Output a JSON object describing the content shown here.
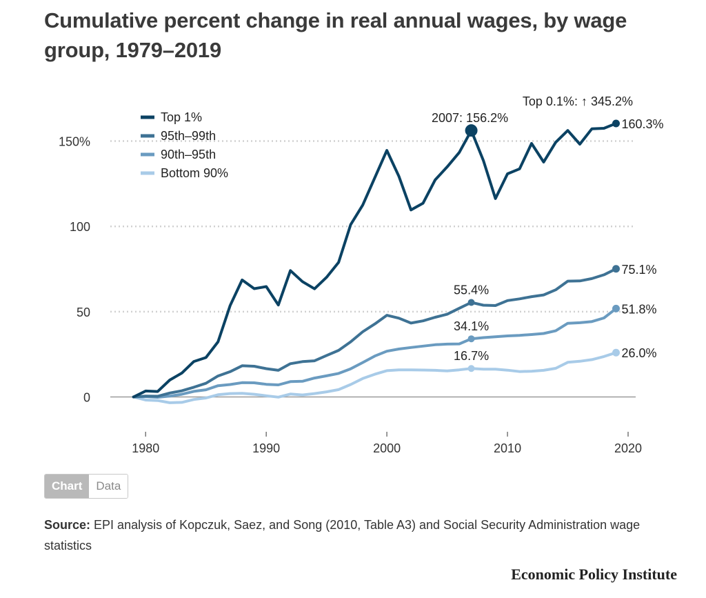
{
  "title": "Cumulative percent change in real annual wages, by wage group, 1979–2019",
  "toggle": {
    "chart_label": "Chart",
    "data_label": "Data"
  },
  "source": {
    "label": "Source:",
    "text": "EPI analysis of Kopczuk, Saez, and Song (2010, Table A3) and Social Security Administration wage statistics"
  },
  "brand": "Economic Policy Institute",
  "colors": {
    "top1": "#0b4263",
    "p95_99": "#3e7294",
    "p90_95": "#6a9bc0",
    "bottom90": "#a8cbe8"
  },
  "chart_data": {
    "type": "line",
    "xlim": [
      1976.5,
      2020.8
    ],
    "ylim": [
      -20,
      168
    ],
    "x_ticks": [
      1980,
      1990,
      2000,
      2010,
      2020
    ],
    "x_tick_labels": [
      "1980",
      "1990",
      "2000",
      "2010",
      "2020"
    ],
    "y_ticks": [
      0,
      50,
      100,
      150
    ],
    "y_tick_labels": [
      "0",
      "50",
      "100",
      "150%"
    ],
    "grid": "horizontal dotted",
    "legend": "top-left",
    "top_note": "Top 0.1%: ↑ 345.2%",
    "x": [
      1979,
      1980,
      1981,
      1982,
      1983,
      1984,
      1985,
      1986,
      1987,
      1988,
      1989,
      1990,
      1991,
      1992,
      1993,
      1994,
      1995,
      1996,
      1997,
      1998,
      1999,
      2000,
      2001,
      2002,
      2003,
      2004,
      2005,
      2006,
      2007,
      2008,
      2009,
      2010,
      2011,
      2012,
      2013,
      2014,
      2015,
      2016,
      2017,
      2018,
      2019
    ],
    "series": [
      {
        "name": "Top 1%",
        "key": "top1",
        "values": [
          0,
          3.5,
          3.2,
          9.9,
          14,
          20.8,
          23.1,
          32.3,
          53.5,
          68.6,
          63.5,
          64.7,
          53.9,
          74.1,
          67.6,
          63.4,
          70.1,
          78.9,
          101,
          112.5,
          128.5,
          144.5,
          129.3,
          109.6,
          113.6,
          127.2,
          134.9,
          143.3,
          156.2,
          138.6,
          116.3,
          130.8,
          133.7,
          148.6,
          137.7,
          149.3,
          156.2,
          148.2,
          157.2,
          157.5,
          160.3
        ],
        "end_label": "160.3%",
        "peak": {
          "x": 2007,
          "y": 156.2,
          "label": "2007: 156.2%"
        }
      },
      {
        "name": "95th–99th",
        "key": "p95_99",
        "values": [
          0,
          0.5,
          0.4,
          2.3,
          3.6,
          5.7,
          8,
          12.3,
          14.8,
          18.3,
          18,
          16.6,
          15.6,
          19.5,
          20.7,
          21.2,
          24.3,
          27.3,
          32.3,
          38.2,
          42.8,
          47.9,
          46.2,
          43.3,
          44.6,
          46.7,
          48.5,
          52,
          55.4,
          53.8,
          53.6,
          56.5,
          57.5,
          58.8,
          59.8,
          62.8,
          67.9,
          68,
          69.4,
          71.6,
          75.1
        ],
        "end_label": "75.1%",
        "mid": {
          "x": 2007,
          "y": 55.4,
          "label": "55.4%"
        }
      },
      {
        "name": "90th–95th",
        "key": "p90_95",
        "values": [
          0,
          0.2,
          -0.2,
          0.5,
          1.6,
          3.3,
          4.2,
          6.6,
          7.3,
          8.4,
          8.3,
          7.4,
          7.1,
          9,
          9.2,
          11.1,
          12.4,
          13.8,
          16.5,
          20.2,
          24,
          26.8,
          28.1,
          29,
          29.8,
          30.6,
          31,
          31.1,
          34.1,
          34.8,
          35.3,
          35.8,
          36.1,
          36.6,
          37.2,
          38.8,
          43.2,
          43.5,
          44.2,
          46.3,
          51.8
        ],
        "end_label": "51.8%",
        "mid": {
          "x": 2007,
          "y": 34.1,
          "label": "34.1%"
        }
      },
      {
        "name": "Bottom 90%",
        "key": "bottom90",
        "values": [
          0,
          -1.8,
          -2.1,
          -3.4,
          -3.2,
          -1.5,
          -0.6,
          1.3,
          2,
          2.1,
          1.6,
          0.7,
          -0.1,
          1.7,
          1.2,
          2,
          3,
          4.3,
          7.3,
          10.8,
          13.3,
          15.4,
          15.9,
          15.9,
          15.8,
          15.6,
          15.3,
          15.9,
          16.7,
          16.3,
          16.3,
          15.7,
          14.9,
          15.1,
          15.6,
          16.8,
          20.3,
          20.9,
          21.9,
          23.7,
          26
        ],
        "end_label": "26.0%",
        "mid": {
          "x": 2007,
          "y": 16.7,
          "label": "16.7%"
        }
      }
    ]
  }
}
